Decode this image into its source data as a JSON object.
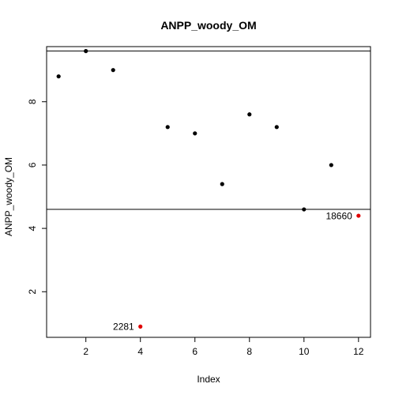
{
  "chart_data": {
    "type": "scatter",
    "title": "ANPP_woody_OM",
    "xlabel": "Index",
    "ylabel": "ANPP_woody_OM",
    "xlim": [
      0.56,
      12.44
    ],
    "ylim": [
      0.56,
      9.74
    ],
    "xticks": [
      2,
      4,
      6,
      8,
      10,
      12
    ],
    "yticks": [
      2,
      4,
      6,
      8
    ],
    "grid": false,
    "legend": "none",
    "points": [
      {
        "x": 1,
        "y": 8.8,
        "color": "#000000"
      },
      {
        "x": 2,
        "y": 9.6,
        "color": "#000000"
      },
      {
        "x": 3,
        "y": 9.0,
        "color": "#000000"
      },
      {
        "x": 4,
        "y": 0.9,
        "color": "#e00000",
        "label": "2281"
      },
      {
        "x": 5,
        "y": 7.2,
        "color": "#000000"
      },
      {
        "x": 6,
        "y": 7.0,
        "color": "#000000"
      },
      {
        "x": 7,
        "y": 5.4,
        "color": "#000000"
      },
      {
        "x": 8,
        "y": 7.6,
        "color": "#000000"
      },
      {
        "x": 9,
        "y": 7.2,
        "color": "#000000"
      },
      {
        "x": 10,
        "y": 4.6,
        "color": "#000000"
      },
      {
        "x": 11,
        "y": 6.0,
        "color": "#000000"
      },
      {
        "x": 12,
        "y": 4.4,
        "color": "#e00000",
        "label": "18660"
      }
    ],
    "hlines": [
      9.6,
      4.6
    ]
  }
}
